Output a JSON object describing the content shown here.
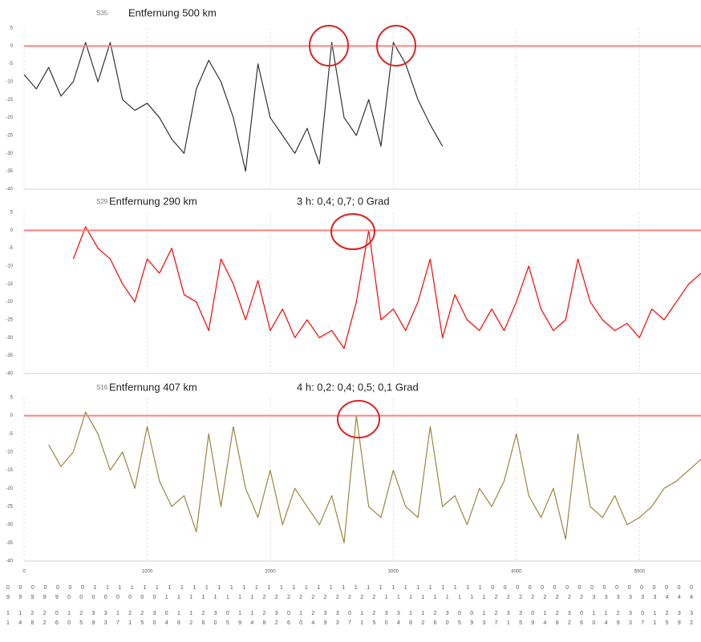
{
  "chart_data": [
    {
      "type": "line",
      "label": "S35",
      "title": "Entfernung 500 km",
      "color": "#333333",
      "ylim": [
        -40,
        5
      ],
      "yticks": [
        5,
        0,
        -5,
        -10,
        -15,
        -20,
        -25,
        -30,
        -35,
        -40
      ],
      "xlim": [
        0,
        5500
      ],
      "reference_line": 0,
      "x": [
        0,
        100,
        200,
        300,
        400,
        500,
        600,
        700,
        800,
        900,
        1000,
        1100,
        1200,
        1300,
        1400,
        1500,
        1600,
        1700,
        1800,
        1900,
        2000,
        2100,
        2200,
        2300,
        2400,
        2500,
        2600,
        2700,
        2800,
        2900,
        3000,
        3100,
        3200,
        3300,
        3400
      ],
      "values": [
        -8,
        -12,
        -6,
        -14,
        -10,
        1,
        -10,
        1,
        -15,
        -18,
        -16,
        -20,
        -26,
        -30,
        -12,
        -4,
        -10,
        -20,
        -35,
        -5,
        -20,
        -25,
        -30,
        -23,
        -33,
        1,
        -20,
        -25,
        -15,
        -28,
        1,
        -5,
        -15,
        -22,
        -28
      ]
    },
    {
      "type": "line",
      "label": "S29",
      "title": "Entfernung 290 km",
      "annotation": "3 h: 0,4; 0,7; 0 Grad",
      "color": "#ff0000",
      "ylim": [
        -40,
        5
      ],
      "yticks": [
        5,
        0,
        -5,
        -10,
        -15,
        -20,
        -25,
        -30,
        -35,
        -40
      ],
      "xlim": [
        0,
        5500
      ],
      "reference_line": 0,
      "x": [
        400,
        500,
        600,
        700,
        800,
        900,
        1000,
        1100,
        1200,
        1300,
        1400,
        1500,
        1600,
        1700,
        1800,
        1900,
        2000,
        2100,
        2200,
        2300,
        2400,
        2500,
        2600,
        2700,
        2800,
        2900,
        3000,
        3100,
        3200,
        3300,
        3400,
        3500,
        3600,
        3700,
        3800,
        3900,
        4000,
        4100,
        4200,
        4300,
        4400,
        4500,
        4600,
        4700,
        4800,
        4900,
        5000,
        5100,
        5200,
        5300,
        5400,
        5500
      ],
      "values": [
        -8,
        1,
        -5,
        -8,
        -15,
        -20,
        -8,
        -12,
        -5,
        -18,
        -20,
        -28,
        -8,
        -15,
        -25,
        -14,
        -28,
        -22,
        -30,
        -25,
        -30,
        -28,
        -33,
        -20,
        0,
        -25,
        -22,
        -28,
        -20,
        -8,
        -30,
        -18,
        -25,
        -28,
        -22,
        -28,
        -20,
        -10,
        -22,
        -28,
        -25,
        -8,
        -20,
        -25,
        -28,
        -26,
        -30,
        -22,
        -25,
        -20,
        -15,
        -12
      ]
    },
    {
      "type": "line",
      "label": "S16",
      "title": "Entfernung 407 km",
      "annotation": "4 h: 0,2: 0,4; 0,5; 0,1 Grad",
      "color": "#9c8540",
      "ylim": [
        -40,
        5
      ],
      "yticks": [
        5,
        0,
        -5,
        -10,
        -15,
        -20,
        -25,
        -30,
        -35,
        -40
      ],
      "xlim": [
        0,
        5500
      ],
      "xticks": [
        0,
        1000,
        2000,
        3000,
        4000,
        5000
      ],
      "reference_line": 0,
      "x": [
        200,
        300,
        400,
        500,
        600,
        700,
        800,
        900,
        1000,
        1100,
        1200,
        1300,
        1400,
        1500,
        1600,
        1700,
        1800,
        1900,
        2000,
        2100,
        2200,
        2300,
        2400,
        2500,
        2600,
        2700,
        2800,
        2900,
        3000,
        3100,
        3200,
        3300,
        3400,
        3500,
        3600,
        3700,
        3800,
        3900,
        4000,
        4100,
        4200,
        4300,
        4400,
        4500,
        4600,
        4700,
        4800,
        4900,
        5000,
        5100,
        5200,
        5300,
        5400,
        5500
      ],
      "values": [
        -8,
        -14,
        -10,
        1,
        -5,
        -15,
        -10,
        -20,
        -3,
        -18,
        -25,
        -22,
        -32,
        -5,
        -25,
        -3,
        -20,
        -28,
        -15,
        -30,
        -20,
        -25,
        -30,
        -22,
        -35,
        0,
        -25,
        -28,
        -15,
        -25,
        -28,
        -3,
        -25,
        -22,
        -30,
        -20,
        -25,
        -18,
        -5,
        -22,
        -28,
        -20,
        -34,
        -5,
        -25,
        -28,
        -22,
        -30,
        -28,
        -25,
        -20,
        -18,
        -15,
        -12
      ]
    }
  ],
  "time_rows": [
    "0 0 0 0 0 0 0 1 1 1 1 1 1 1 1 1 1 1 1 1 1 1 1 1 1 1 1 1 1 1 1 1 1 1 1 1 1 1 1 0 0 0 0 0 0 0 0 0 0 0 0 0 0 0 0 0",
    "9 9 9 9 9 0 0 0 0 0 0 0 0 1 1 1 1 1 1 1 1 2 2 2 2 2 2 2 2 2 2 1 1 1 1 1 1 1 1 1 2 2 2 2 2 2 2 2 3 3 3 3 3 3 4 4 4",
    "1 1 2 2 0 1 2 3 3 1 2 2 3 0 1 1 2 3 0 1 1 2 3 0 1 2 3 3 0 1 2 3 3 1 1 2 3 0 0 1 2 3 3 0 1 2 3 0 1 1 2 3 0 1 2 3 3",
    "1 4 8 2 6 0 5 9 3 7 1 5 0 4 8 2 6 0 5 9 4 8 2 6 0 4 9 3 7 1 5 0 4 8 2 6 0 5 9 3 7 1 5 9 4 8 2 6 0 4 9 3 7 1 5 9 2"
  ]
}
